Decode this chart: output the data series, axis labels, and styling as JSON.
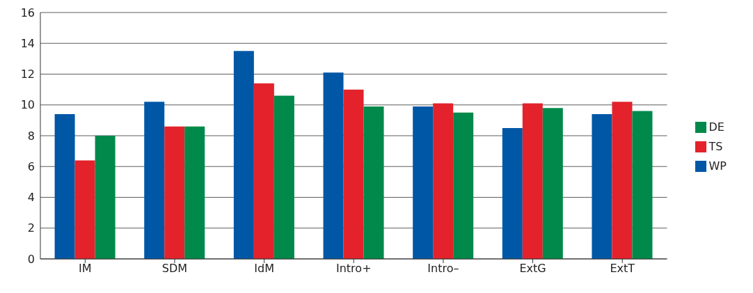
{
  "chart_data": {
    "type": "bar",
    "categories": [
      "IM",
      "SDM",
      "IdM",
      "Intro+",
      "Intro–",
      "ExtG",
      "ExtT"
    ],
    "series": [
      {
        "name": "WP",
        "color": "#0057a6",
        "values": [
          9.4,
          10.2,
          13.5,
          12.1,
          9.9,
          8.5,
          9.4
        ]
      },
      {
        "name": "TS",
        "color": "#e3222b",
        "values": [
          6.4,
          8.6,
          11.4,
          11.0,
          10.1,
          10.1,
          10.2
        ]
      },
      {
        "name": "DE",
        "color": "#00894a",
        "values": [
          8.0,
          8.6,
          10.6,
          9.9,
          9.5,
          9.8,
          9.6
        ]
      }
    ],
    "ylim": [
      0,
      16
    ],
    "yticks": [
      0,
      2,
      4,
      6,
      8,
      10,
      12,
      14,
      16
    ],
    "grid": "y",
    "legend": "right"
  }
}
